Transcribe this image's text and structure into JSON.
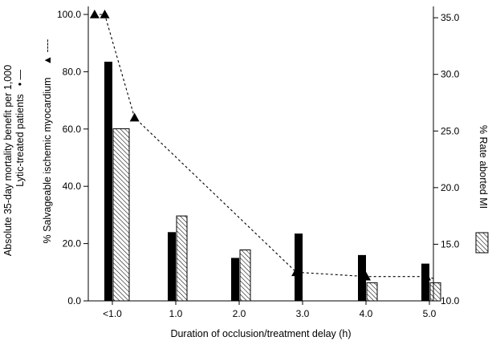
{
  "chart_data": {
    "type": "bar",
    "xlabel": "Duration of occlusion/treatment delay (h)",
    "categories": [
      "<1.0",
      "1.0",
      "2.0",
      "3.0",
      "4.0",
      "5.0"
    ],
    "left_axis": {
      "title_line1": "Absolute 35-day mortality benefit per 1,000",
      "title_line2": "Lytic-treated patients",
      "title_marker": "• —",
      "ylim": [
        0,
        100
      ],
      "ticks": [
        "0.0",
        "20.0",
        "40.0",
        "60.0",
        "80.0",
        "100.0"
      ]
    },
    "left_axis_2": {
      "title": "% Salvageable ischemic myocardium",
      "title_marker": "▲ ----"
    },
    "right_axis": {
      "title": "% Rate aborted MI",
      "ylim": [
        10,
        36
      ],
      "ticks": [
        "10.0",
        "15.0",
        "20.0",
        "25.0",
        "30.0",
        "35.0"
      ]
    },
    "series": [
      {
        "name": "Absolute 35-day mortality benefit per 1,000 lytic-treated patients",
        "style": "solid-black-bar",
        "axis": "left",
        "values": [
          83.5,
          24.0,
          15.0,
          23.5,
          16.0,
          13.0
        ]
      },
      {
        "name": "% Rate aborted MI",
        "style": "hatched-bar",
        "axis": "right",
        "values": [
          25.2,
          17.5,
          14.5,
          null,
          11.6,
          11.6
        ]
      },
      {
        "name": "% Salvageable ischemic myocardium",
        "style": "dashed-line-triangle",
        "axis": "left",
        "x": [
          -0.28,
          -0.12,
          0.35,
          2.9,
          4.0,
          4.95
        ],
        "values": [
          100.0,
          100.0,
          64.0,
          10.0,
          8.5,
          8.5
        ]
      }
    ],
    "colors": {
      "solid": "#000000",
      "hatch": "#000000",
      "background": "#ffffff"
    }
  }
}
